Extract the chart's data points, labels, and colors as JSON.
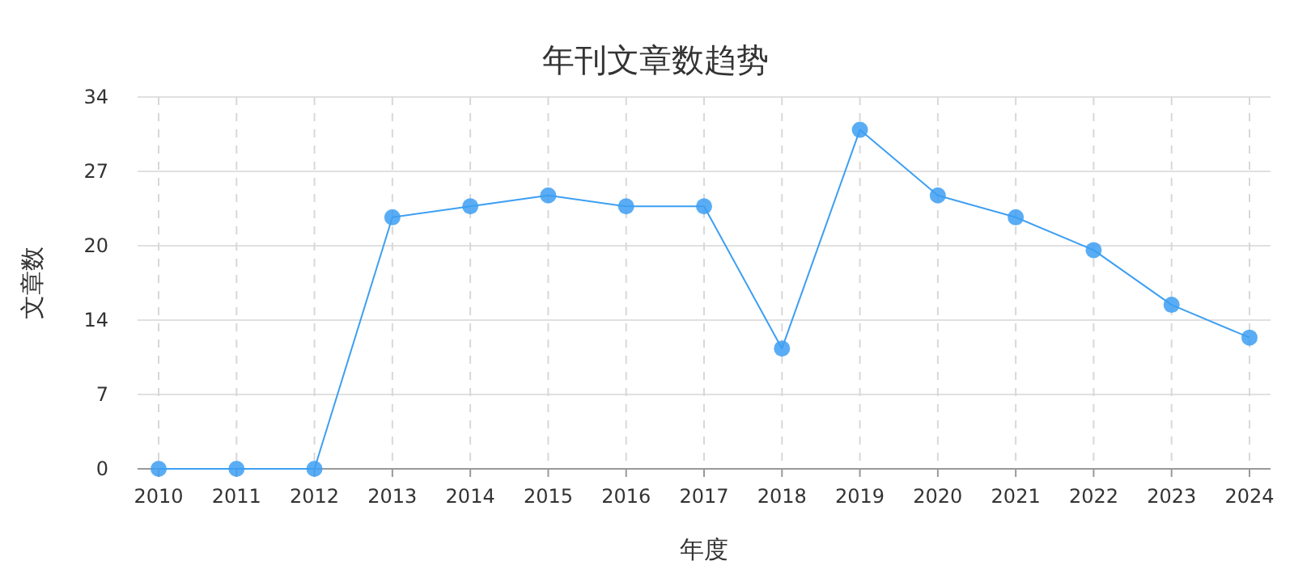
{
  "chart_data": {
    "type": "line",
    "title": "年刊文章数趋势",
    "xlabel": "年度",
    "ylabel": "文章数",
    "categories": [
      "2010",
      "2011",
      "2012",
      "2013",
      "2014",
      "2015",
      "2016",
      "2017",
      "2018",
      "2019",
      "2020",
      "2021",
      "2022",
      "2023",
      "2024"
    ],
    "series": [
      {
        "color": "#3d9ff2",
        "values": [
          0,
          0,
          0,
          23,
          24,
          25,
          24,
          24,
          11,
          31,
          25,
          23,
          20,
          15,
          12
        ]
      }
    ],
    "ylim": [
      0,
      34
    ],
    "yticks": [
      0,
      {
        "value": 6.8,
        "label": "7"
      },
      {
        "value": 13.6,
        "label": "14"
      },
      {
        "value": 20.4,
        "label": "20"
      },
      {
        "value": 27.2,
        "label": "27"
      },
      34
    ],
    "grid": true,
    "marker": "circle",
    "line_style": "solid"
  }
}
